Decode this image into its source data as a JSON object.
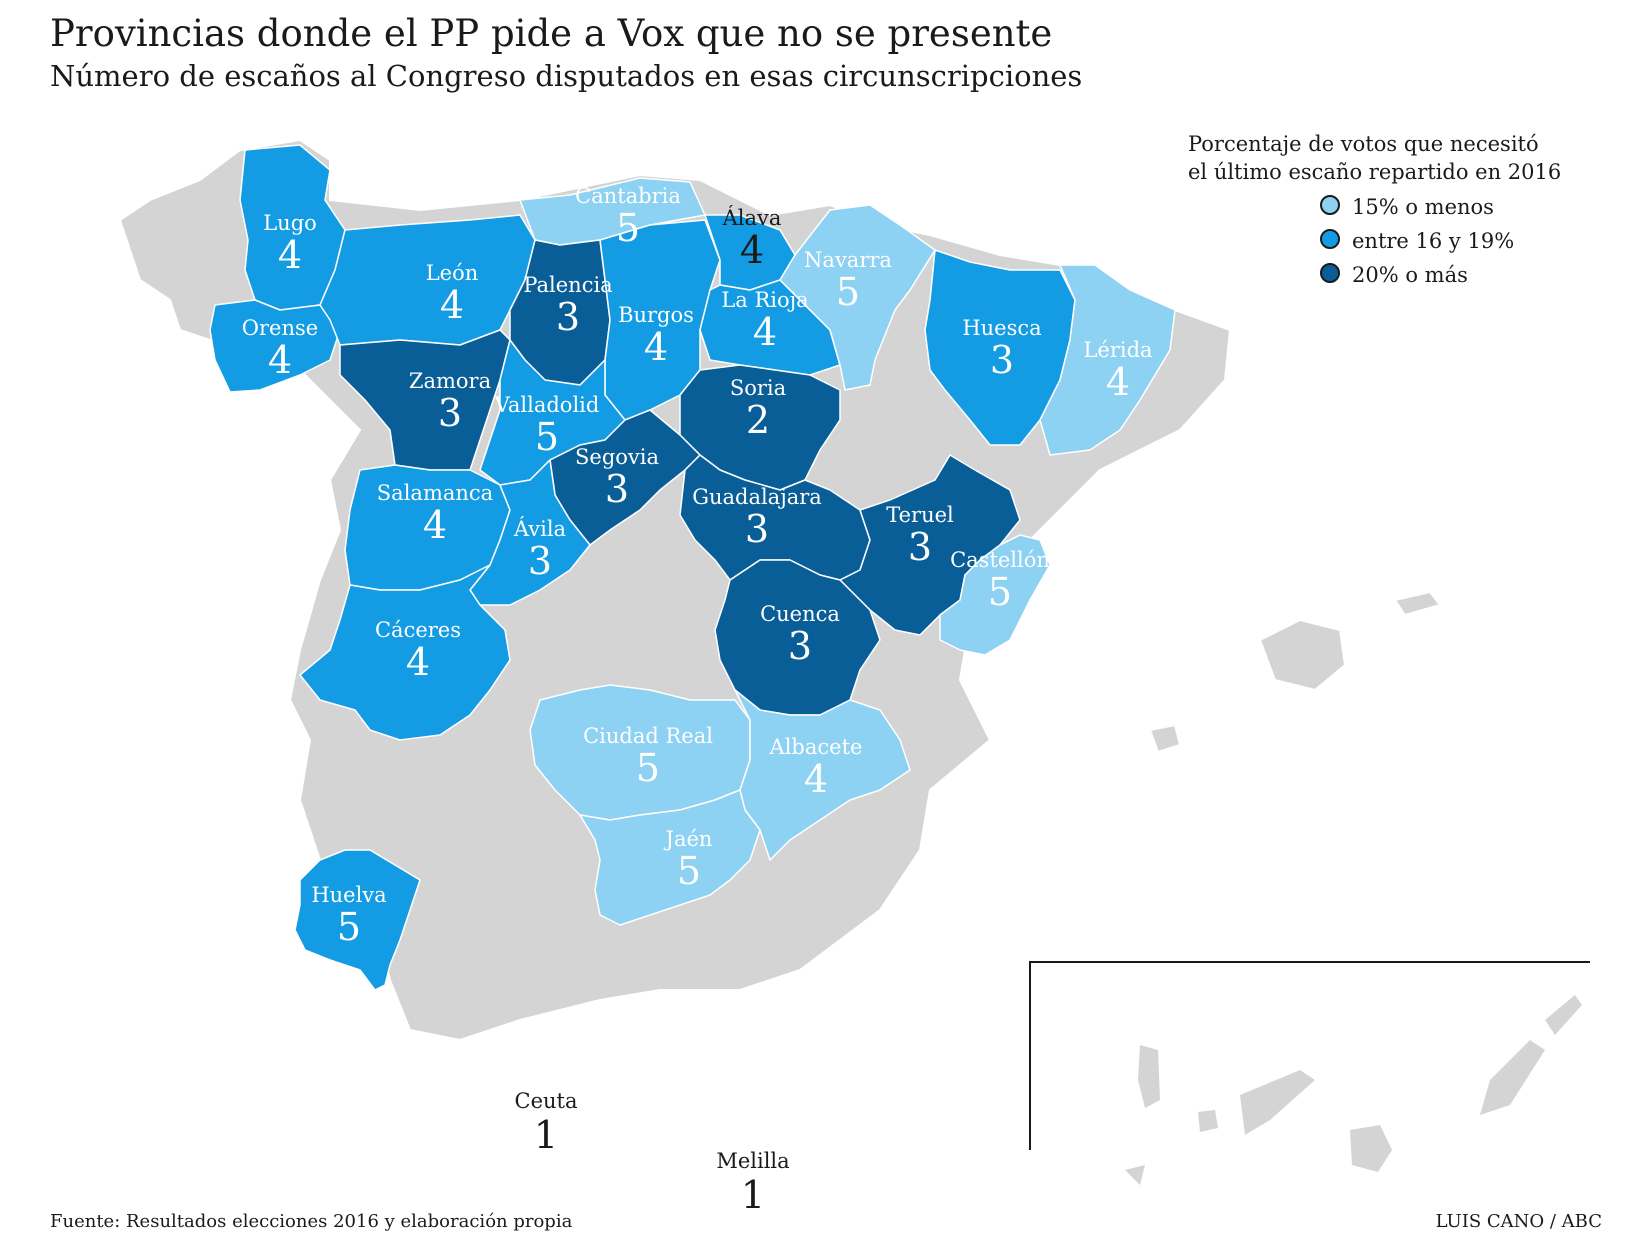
{
  "title": "Provincias donde el PP pide a Vox que no se presente",
  "subtitle": "Número de escaños al Congreso disputados en esas circunscripciones",
  "legend": {
    "title_line1": "Porcentaje de votos que necesitó",
    "title_line2": "el último escaño repartido en 2016",
    "items": [
      {
        "label": "15% o menos",
        "color": "#8dd1f3"
      },
      {
        "label": "entre 16 y 19%",
        "color": "#139ce3"
      },
      {
        "label": "20% o más",
        "color": "#0a5e98"
      }
    ]
  },
  "colors": {
    "light": "#8dd1f3",
    "mid": "#139ce3",
    "dark": "#0a5e98",
    "land": "#d4d4d4"
  },
  "provinces": [
    {
      "name": "Lugo",
      "seats": "4",
      "category": "mid"
    },
    {
      "name": "Orense",
      "seats": "4",
      "category": "mid"
    },
    {
      "name": "León",
      "seats": "4",
      "category": "mid"
    },
    {
      "name": "Cantabria",
      "seats": "5",
      "category": "light"
    },
    {
      "name": "Palencia",
      "seats": "3",
      "category": "dark"
    },
    {
      "name": "Burgos",
      "seats": "4",
      "category": "mid"
    },
    {
      "name": "Álava",
      "seats": "4",
      "category": "mid"
    },
    {
      "name": "La Rioja",
      "seats": "4",
      "category": "mid"
    },
    {
      "name": "Navarra",
      "seats": "5",
      "category": "light"
    },
    {
      "name": "Huesca",
      "seats": "3",
      "category": "mid"
    },
    {
      "name": "Lérida",
      "seats": "4",
      "category": "light"
    },
    {
      "name": "Zamora",
      "seats": "3",
      "category": "dark"
    },
    {
      "name": "Valladolid",
      "seats": "5",
      "category": "mid"
    },
    {
      "name": "Soria",
      "seats": "2",
      "category": "dark"
    },
    {
      "name": "Segovia",
      "seats": "3",
      "category": "dark"
    },
    {
      "name": "Salamanca",
      "seats": "4",
      "category": "mid"
    },
    {
      "name": "Ávila",
      "seats": "3",
      "category": "mid"
    },
    {
      "name": "Guadalajara",
      "seats": "3",
      "category": "dark"
    },
    {
      "name": "Teruel",
      "seats": "3",
      "category": "dark"
    },
    {
      "name": "Castellón",
      "seats": "5",
      "category": "light"
    },
    {
      "name": "Cáceres",
      "seats": "4",
      "category": "mid"
    },
    {
      "name": "Cuenca",
      "seats": "3",
      "category": "dark"
    },
    {
      "name": "Ciudad Real",
      "seats": "5",
      "category": "light"
    },
    {
      "name": "Albacete",
      "seats": "4",
      "category": "light"
    },
    {
      "name": "Jaén",
      "seats": "5",
      "category": "light"
    },
    {
      "name": "Huelva",
      "seats": "5",
      "category": "mid"
    }
  ],
  "outside": [
    {
      "name": "Ceuta",
      "seats": "1"
    },
    {
      "name": "Melilla",
      "seats": "1"
    }
  ],
  "source": "Fuente: Resultados elecciones 2016 y elaboración propia",
  "credit": "LUIS CANO / ABC"
}
